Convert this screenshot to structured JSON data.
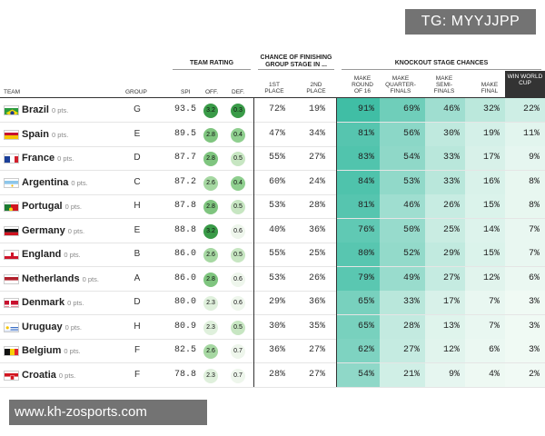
{
  "watermarks": {
    "top": "TG: MYYJJPP",
    "bottom": "www.kh-zosports.com"
  },
  "group_headers": {
    "team_rating": "TEAM RATING",
    "chance_group": "CHANCE OF FINISHING GROUP STAGE IN ...",
    "knockout": "KNOCKOUT STAGE CHANCES"
  },
  "columns": {
    "team": "TEAM",
    "group": "GROUP",
    "spi": "SPI",
    "off": "OFF.",
    "def": "DEF.",
    "first": "1ST PLACE",
    "second": "2ND PLACE",
    "r16": "MAKE ROUND OF 16",
    "qf": "MAKE QUARTER-FINALS",
    "sf": "MAKE SEMI-FINALS",
    "final": "MAKE FINAL",
    "win": "WIN WORLD CUP"
  },
  "colors": {
    "rating_circle_strong": "#3a9b48",
    "rating_circle_mid": "#8fcf8f",
    "rating_circle_light": "#dff0dc",
    "knockout_cell_max": "#3ebda4"
  },
  "teams": [
    {
      "name": "Brazil",
      "pts": "0 pts.",
      "group": "G",
      "spi": "93.5",
      "off": "3.2",
      "def": "0.3",
      "first": "72%",
      "second": "19%",
      "r16": "91%",
      "qf": "69%",
      "sf": "46%",
      "final": "32%",
      "win": "22%",
      "flag": "brazil-flag-icon"
    },
    {
      "name": "Spain",
      "pts": "0 pts.",
      "group": "E",
      "spi": "89.5",
      "off": "2.8",
      "def": "0.4",
      "first": "47%",
      "second": "34%",
      "r16": "81%",
      "qf": "56%",
      "sf": "30%",
      "final": "19%",
      "win": "11%",
      "flag": "spain-flag-icon"
    },
    {
      "name": "France",
      "pts": "0 pts.",
      "group": "D",
      "spi": "87.7",
      "off": "2.8",
      "def": "0.5",
      "first": "55%",
      "second": "27%",
      "r16": "83%",
      "qf": "54%",
      "sf": "33%",
      "final": "17%",
      "win": "9%",
      "flag": "france-flag-icon"
    },
    {
      "name": "Argentina",
      "pts": "0 pts.",
      "group": "C",
      "spi": "87.2",
      "off": "2.6",
      "def": "0.4",
      "first": "60%",
      "second": "24%",
      "r16": "84%",
      "qf": "53%",
      "sf": "33%",
      "final": "16%",
      "win": "8%",
      "flag": "argentina-flag-icon"
    },
    {
      "name": "Portugal",
      "pts": "0 pts.",
      "group": "H",
      "spi": "87.8",
      "off": "2.8",
      "def": "0.5",
      "first": "53%",
      "second": "28%",
      "r16": "81%",
      "qf": "46%",
      "sf": "26%",
      "final": "15%",
      "win": "8%",
      "flag": "portugal-flag-icon"
    },
    {
      "name": "Germany",
      "pts": "0 pts.",
      "group": "E",
      "spi": "88.8",
      "off": "3.2",
      "def": "0.6",
      "first": "40%",
      "second": "36%",
      "r16": "76%",
      "qf": "50%",
      "sf": "25%",
      "final": "14%",
      "win": "7%",
      "flag": "germany-flag-icon"
    },
    {
      "name": "England",
      "pts": "0 pts.",
      "group": "B",
      "spi": "86.0",
      "off": "2.6",
      "def": "0.5",
      "first": "55%",
      "second": "25%",
      "r16": "80%",
      "qf": "52%",
      "sf": "29%",
      "final": "15%",
      "win": "7%",
      "flag": "england-flag-icon"
    },
    {
      "name": "Netherlands",
      "pts": "0 pts.",
      "group": "A",
      "spi": "86.0",
      "off": "2.8",
      "def": "0.6",
      "first": "53%",
      "second": "26%",
      "r16": "79%",
      "qf": "49%",
      "sf": "27%",
      "final": "12%",
      "win": "6%",
      "flag": "netherlands-flag-icon"
    },
    {
      "name": "Denmark",
      "pts": "0 pts.",
      "group": "D",
      "spi": "80.0",
      "off": "2.3",
      "def": "0.6",
      "first": "29%",
      "second": "36%",
      "r16": "65%",
      "qf": "33%",
      "sf": "17%",
      "final": "7%",
      "win": "3%",
      "flag": "denmark-flag-icon"
    },
    {
      "name": "Uruguay",
      "pts": "0 pts.",
      "group": "H",
      "spi": "80.9",
      "off": "2.3",
      "def": "0.5",
      "first": "30%",
      "second": "35%",
      "r16": "65%",
      "qf": "28%",
      "sf": "13%",
      "final": "7%",
      "win": "3%",
      "flag": "uruguay-flag-icon"
    },
    {
      "name": "Belgium",
      "pts": "0 pts.",
      "group": "F",
      "spi": "82.5",
      "off": "2.6",
      "def": "0.7",
      "first": "36%",
      "second": "27%",
      "r16": "62%",
      "qf": "27%",
      "sf": "12%",
      "final": "6%",
      "win": "3%",
      "flag": "belgium-flag-icon"
    },
    {
      "name": "Croatia",
      "pts": "0 pts.",
      "group": "F",
      "spi": "78.8",
      "off": "2.3",
      "def": "0.7",
      "first": "28%",
      "second": "27%",
      "r16": "54%",
      "qf": "21%",
      "sf": "9%",
      "final": "4%",
      "win": "2%",
      "flag": "croatia-flag-icon"
    }
  ]
}
